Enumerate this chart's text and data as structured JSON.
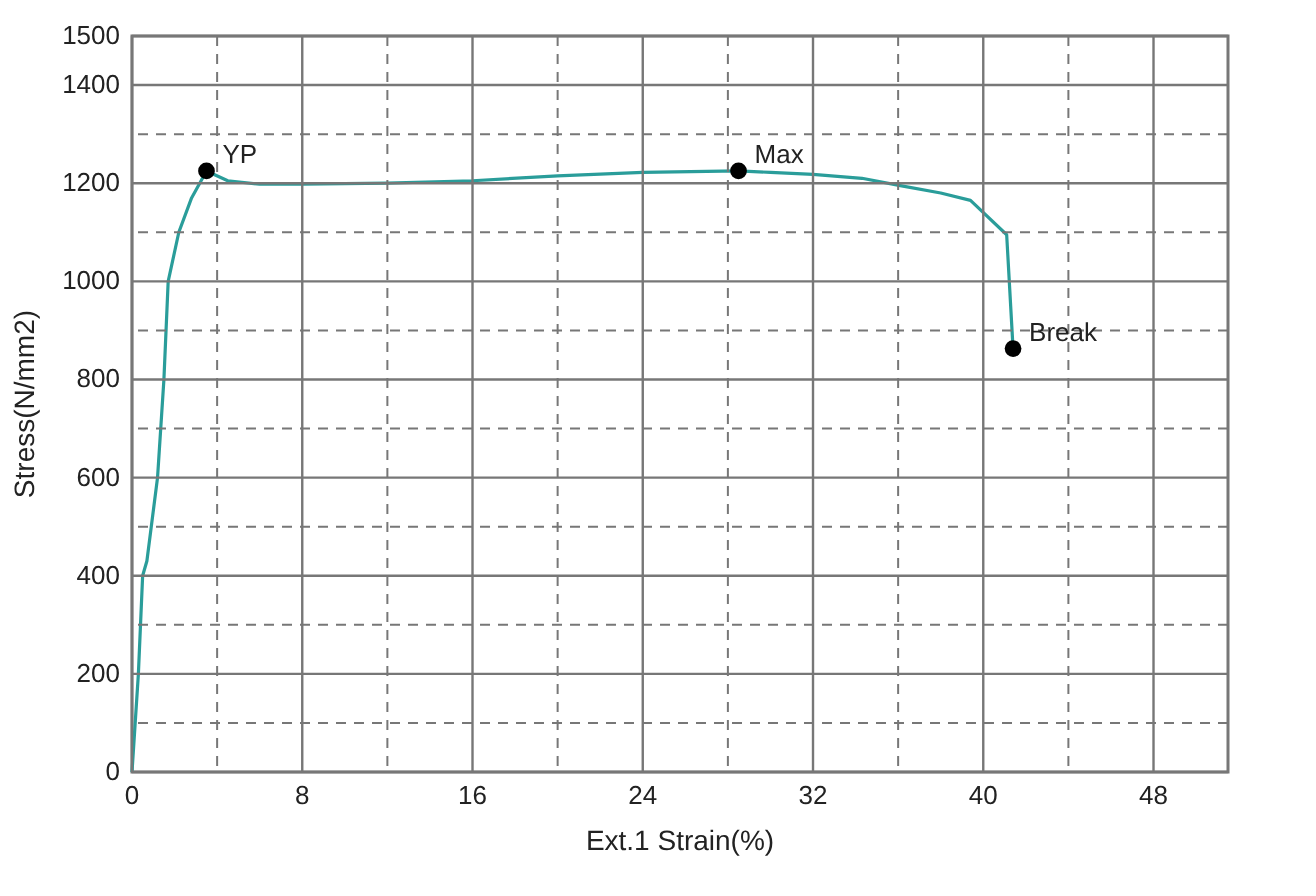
{
  "chart_data": {
    "type": "line",
    "xlabel": "Ext.1 Strain(%)",
    "ylabel": "Stress(N/mm2)",
    "xlim": [
      0,
      51.5
    ],
    "ylim": [
      0,
      1500
    ],
    "xticks": [
      0,
      {
        "value": 4,
        "label": null
      },
      8,
      {
        "value": 12,
        "label": null
      },
      16,
      {
        "value": 20,
        "label": null
      },
      24,
      {
        "value": 28,
        "label": null
      },
      32,
      {
        "value": 36,
        "label": null
      },
      40,
      {
        "value": 44,
        "label": null
      },
      48
    ],
    "yticks": [
      0,
      {
        "value": 100,
        "label": null
      },
      200,
      {
        "value": 300,
        "label": null
      },
      400,
      {
        "value": 500,
        "label": null
      },
      600,
      {
        "value": 700,
        "label": null
      },
      800,
      {
        "value": 900,
        "label": null
      },
      1000,
      {
        "value": 1100,
        "label": null
      },
      1200,
      {
        "value": 1300,
        "label": null
      },
      1400,
      1500
    ],
    "grid": true,
    "series": [
      {
        "color": "#2a9d9a",
        "marker": "none",
        "line_style": "solid",
        "x": [
          0,
          0.3,
          0.5,
          0.7,
          1.2,
          1.5,
          1.7,
          2.2,
          2.8,
          3.5,
          4.5,
          6,
          8,
          12,
          16,
          20,
          24,
          28.5,
          30,
          32,
          34.3,
          36.1,
          38,
          39.4,
          41.1,
          41.4
        ],
        "values": [
          0,
          200,
          400,
          430,
          600,
          800,
          1000,
          1100,
          1170,
          1225,
          1205,
          1198,
          1198,
          1200,
          1205,
          1215,
          1222,
          1225,
          1222,
          1218,
          1210,
          1195,
          1180,
          1165,
          1095,
          863
        ]
      },
      {
        "type": "scatter",
        "color": "#000000",
        "marker": "circle",
        "x": [
          3.5,
          28.5,
          41.4
        ],
        "values": [
          1225,
          1225,
          863
        ]
      }
    ],
    "annotations": [
      {
        "text": "YP",
        "x": 3.5,
        "y": 1225
      },
      {
        "text": "Max",
        "x": 28.5,
        "y": 1225
      },
      {
        "text": "Break",
        "x": 41.4,
        "y": 863
      }
    ]
  }
}
